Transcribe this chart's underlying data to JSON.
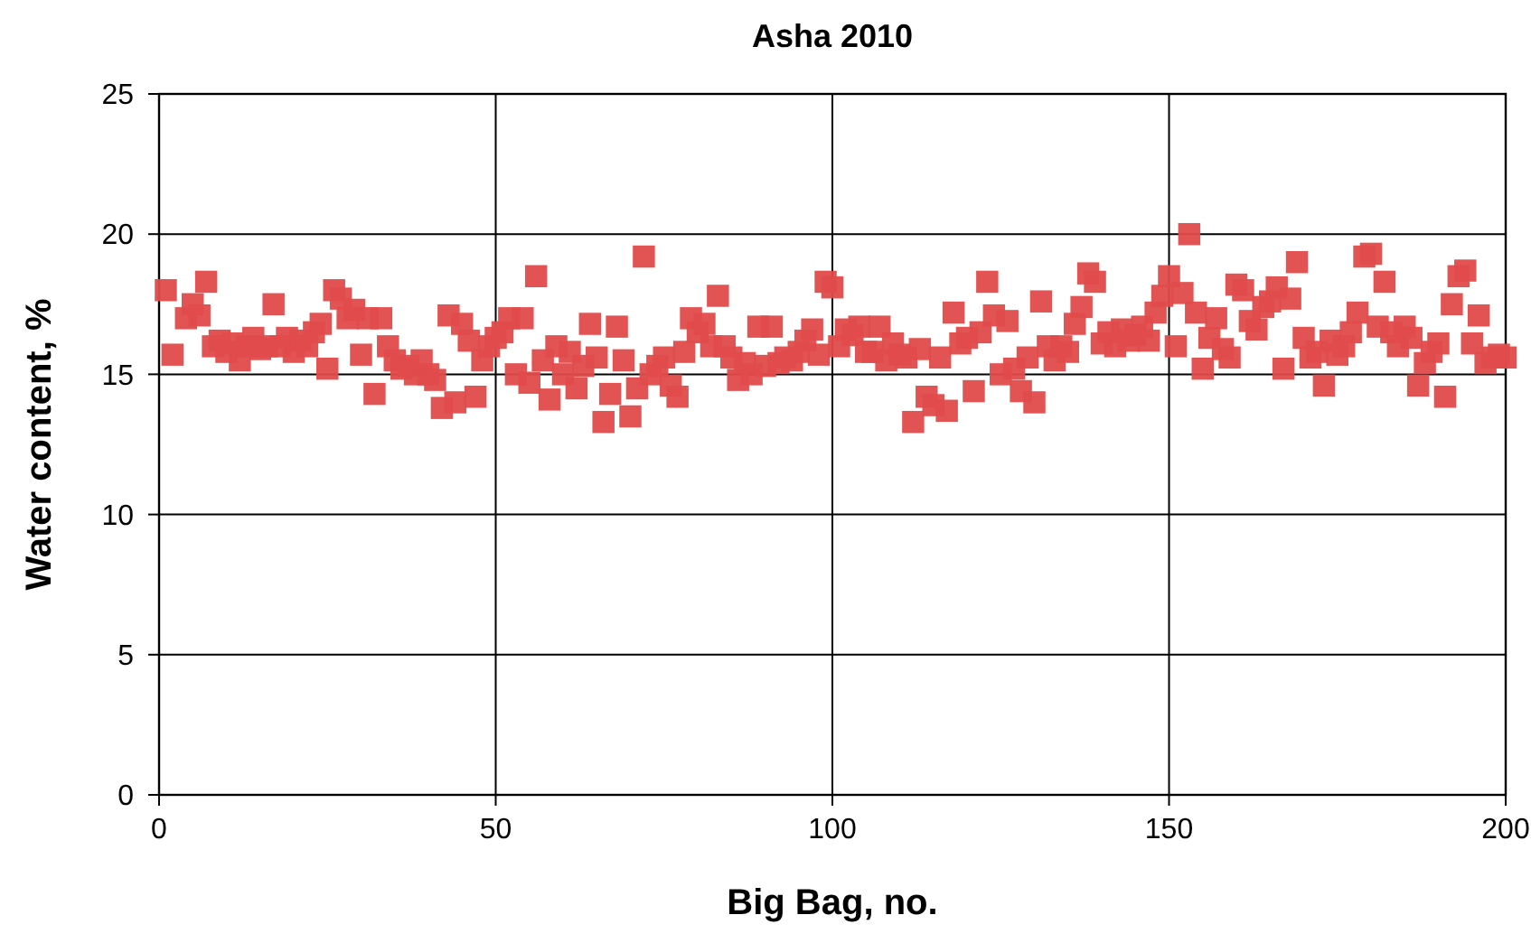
{
  "chart_data": {
    "type": "scatter",
    "title": "Asha 2010",
    "xlabel": "Big Bag, no.",
    "ylabel": "Water content, %",
    "marker": "square",
    "grid": true,
    "xlim": [
      0,
      200
    ],
    "xticks": [
      0,
      50,
      100,
      150,
      200
    ],
    "ylim": [
      0,
      25
    ],
    "yticks": [
      0,
      5,
      10,
      15,
      20,
      25
    ],
    "series": [
      {
        "color": "#e04b4b",
        "x": [
          1,
          2,
          4,
          5,
          6,
          7,
          8,
          9,
          10,
          11,
          12,
          13,
          14,
          15,
          16,
          17,
          18,
          19,
          20,
          21,
          22,
          23,
          24,
          25,
          26,
          27,
          28,
          29,
          30,
          31,
          32,
          33,
          34,
          35,
          36,
          37,
          38,
          39,
          40,
          41,
          42,
          43,
          44,
          45,
          46,
          47,
          48,
          49,
          50,
          51,
          52,
          53,
          54,
          55,
          56,
          57,
          58,
          59,
          60,
          61,
          62,
          63,
          64,
          65,
          66,
          67,
          68,
          69,
          70,
          71,
          72,
          73,
          74,
          75,
          76,
          77,
          78,
          79,
          80,
          81,
          82,
          83,
          84,
          85,
          86,
          87,
          88,
          89,
          90,
          91,
          92,
          93,
          94,
          95,
          96,
          97,
          98,
          99,
          100,
          101,
          102,
          103,
          104,
          105,
          106,
          107,
          108,
          109,
          110,
          111,
          112,
          113,
          114,
          115,
          116,
          117,
          118,
          119,
          120,
          121,
          122,
          123,
          124,
          125,
          126,
          127,
          128,
          129,
          130,
          131,
          132,
          133,
          134,
          135,
          136,
          137,
          138,
          139,
          140,
          141,
          142,
          143,
          144,
          145,
          146,
          147,
          148,
          149,
          150,
          151,
          152,
          153,
          154,
          155,
          156,
          157,
          158,
          159,
          160,
          161,
          162,
          163,
          164,
          165,
          166,
          167,
          168,
          169,
          170,
          171,
          172,
          173,
          174,
          175,
          176,
          177,
          178,
          179,
          180,
          181,
          182,
          183,
          184,
          185,
          186,
          187,
          188,
          189,
          190,
          191,
          192,
          193,
          194,
          195,
          196,
          197,
          198,
          199,
          200
        ],
        "values": [
          18.0,
          15.7,
          17.0,
          17.5,
          17.1,
          18.3,
          16.0,
          16.2,
          15.8,
          16.1,
          15.5,
          16.0,
          16.3,
          15.9,
          16.0,
          17.5,
          16.0,
          16.3,
          15.8,
          16.2,
          16.0,
          16.5,
          16.8,
          15.2,
          18.0,
          17.7,
          17.0,
          17.3,
          15.7,
          17.0,
          14.3,
          17.0,
          16.0,
          15.5,
          15.2,
          15.3,
          15.0,
          15.5,
          15.0,
          14.8,
          13.8,
          17.1,
          14.0,
          16.8,
          16.2,
          14.2,
          15.5,
          16.0,
          16.3,
          16.5,
          17.0,
          15.0,
          17.0,
          14.7,
          18.5,
          15.5,
          14.1,
          16.0,
          15.0,
          15.8,
          14.5,
          15.3,
          16.8,
          15.6,
          13.3,
          14.3,
          16.7,
          15.5,
          13.5,
          14.5,
          19.2,
          15.0,
          15.3,
          15.6,
          14.6,
          14.2,
          15.8,
          17.0,
          16.5,
          16.8,
          16.0,
          17.8,
          16.0,
          15.6,
          14.8,
          15.4,
          15.0,
          16.7,
          15.3,
          16.7,
          15.4,
          15.6,
          15.5,
          15.8,
          16.2,
          16.6,
          15.7,
          18.3,
          18.1,
          16.0,
          16.6,
          16.4,
          16.7,
          15.8,
          15.8,
          16.7,
          15.5,
          16.1,
          15.7,
          15.6,
          13.3,
          15.9,
          14.2,
          13.9,
          15.6,
          13.7,
          17.2,
          16.1,
          16.3,
          14.4,
          16.5,
          18.3,
          17.1,
          15.0,
          16.9,
          15.2,
          14.4,
          15.6,
          14.0,
          17.6,
          16.0,
          15.5,
          16.0,
          15.8,
          16.8,
          17.4,
          18.6,
          18.3,
          16.1,
          16.5,
          16.0,
          16.6,
          16.2,
          16.4,
          16.7,
          16.2,
          17.2,
          17.8,
          18.5,
          16.0,
          17.9,
          20.0,
          17.2,
          15.2,
          16.3,
          17.0,
          15.9,
          15.6,
          18.2,
          18.0,
          16.9,
          16.6,
          17.4,
          17.6,
          18.1,
          15.2,
          17.7,
          19.0,
          16.3,
          15.6,
          15.8,
          14.6,
          16.2,
          15.7,
          16.0,
          16.5,
          17.2,
          19.2,
          19.3,
          16.7,
          18.3,
          16.5,
          16.0,
          16.7,
          16.3,
          14.6,
          15.4,
          15.8,
          16.1,
          14.2,
          17.5,
          18.5,
          18.7,
          16.1,
          17.1,
          15.4,
          15.6,
          15.7,
          15.6
        ]
      }
    ]
  }
}
